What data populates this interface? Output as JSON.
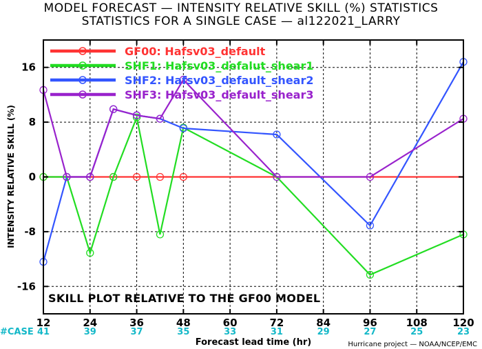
{
  "chart_data": {
    "type": "line",
    "title": "MODEL FORECAST — INTENSITY RELATIVE SKILL (%) STATISTICS",
    "subtitle": "STATISTICS FOR A SINGLE CASE — al122021_LARRY",
    "xlabel": "Forecast lead time (hr)",
    "ylabel": "INTENSITY RELATIVE SKILL (%)",
    "annotation": "SKILL PLOT RELATIVE TO THE GF00 MODEL",
    "credit": "Hurricane project — NOAA/NCEP/EMC",
    "xlim": [
      12,
      120
    ],
    "ylim": [
      -20,
      20
    ],
    "x_ticks": [
      "12",
      "24",
      "36",
      "48",
      "60",
      "72",
      "84",
      "96",
      "108",
      "120"
    ],
    "y_ticks": [
      "16",
      "8",
      "0",
      "-8",
      "-16"
    ],
    "case_label": "#CASE",
    "case_x": [
      12,
      24,
      36,
      48,
      60,
      72,
      84,
      96,
      108,
      120
    ],
    "case_counts": [
      "41",
      "39",
      "37",
      "35",
      "33",
      "31",
      "29",
      "27",
      "25",
      "23"
    ],
    "series": [
      {
        "name": "GF00: Hafsv03_default",
        "color": "#ff3333",
        "x": [
          12,
          18,
          24,
          30,
          36,
          42,
          48,
          72,
          96,
          120
        ],
        "y": [
          0,
          0,
          0,
          0,
          0,
          0,
          0,
          0,
          0,
          0
        ],
        "show_markers": [
          true,
          true,
          true,
          true,
          true,
          true,
          true,
          false,
          false,
          false
        ]
      },
      {
        "name": "SHF1: Hafsv03_defalut_shear1",
        "color": "#22dd22",
        "x": [
          12,
          18,
          24,
          30,
          36,
          42,
          48,
          72,
          96,
          120
        ],
        "y": [
          0,
          0,
          -11.1,
          0,
          8.7,
          -8.4,
          7.2,
          0,
          -14.3,
          -8.4
        ],
        "show_markers": [
          true,
          true,
          true,
          true,
          true,
          true,
          true,
          true,
          true,
          true
        ]
      },
      {
        "name": "SHF2: Hafsv03_default_shear2",
        "color": "#3355ff",
        "x": [
          12,
          18,
          24,
          30,
          36,
          42,
          48,
          72,
          96,
          120
        ],
        "y": [
          -12.4,
          0,
          0,
          9.9,
          9.0,
          8.5,
          7.1,
          6.2,
          -7.1,
          16.8
        ],
        "show_markers": [
          true,
          true,
          true,
          true,
          true,
          true,
          true,
          true,
          true,
          true
        ]
      },
      {
        "name": "SHF3: Hafsv03_default_shear3",
        "color": "#9922cc",
        "x": [
          12,
          18,
          24,
          30,
          36,
          42,
          48,
          72,
          96,
          120
        ],
        "y": [
          12.7,
          0,
          0,
          9.9,
          9.0,
          8.5,
          14.2,
          0,
          0,
          8.5
        ],
        "show_markers": [
          true,
          true,
          true,
          true,
          true,
          true,
          true,
          true,
          true,
          true
        ]
      }
    ]
  }
}
